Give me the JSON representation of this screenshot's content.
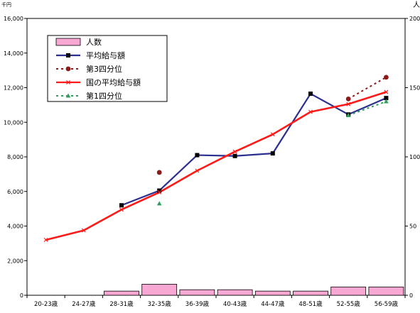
{
  "chart_data": {
    "type": "bar+line",
    "title": "",
    "y_left_unit": "千円",
    "y_right_unit": "人",
    "y_left_ticks": [
      "0",
      "2,000",
      "4,000",
      "6,000",
      "8,000",
      "10,000",
      "12,000",
      "14,000",
      "16,000"
    ],
    "y_right_ticks": [
      "0",
      "50",
      "100",
      "150",
      "200"
    ],
    "ylim_left": [
      0,
      16000
    ],
    "ylim_right": [
      0,
      200
    ],
    "grid": false,
    "legend_position": "top-left",
    "categories": [
      "20-23歳",
      "24-27歳",
      "28-31歳",
      "32-35歳",
      "36-39歳",
      "40-43歳",
      "44-47歳",
      "48-51歳",
      "52-55歳",
      "56-59歳"
    ],
    "series": [
      {
        "name": "人数",
        "kind": "bar",
        "axis": "right",
        "color": "#f9a8d4",
        "values": [
          0,
          0,
          3,
          8,
          4,
          4,
          3,
          3,
          6,
          6
        ]
      },
      {
        "name": "平均給与額",
        "kind": "line",
        "axis": "left",
        "color": "#2b2f8f",
        "marker": "square",
        "values": [
          null,
          null,
          5200,
          6050,
          8100,
          8050,
          8200,
          11650,
          10450,
          11400
        ]
      },
      {
        "name": "第3四分位",
        "kind": "dotted-line",
        "axis": "left",
        "color": "#8b1a1a",
        "marker": "circle",
        "values": [
          null,
          null,
          null,
          7100,
          null,
          null,
          null,
          null,
          11350,
          12600
        ]
      },
      {
        "name": "国の平均給与額",
        "kind": "line",
        "axis": "left",
        "color": "#ff1a1a",
        "marker": "x",
        "values": [
          3200,
          3750,
          4950,
          5950,
          7200,
          8300,
          9300,
          10600,
          11050,
          11750
        ]
      },
      {
        "name": "第1四分位",
        "kind": "dotted-line",
        "axis": "left",
        "color": "#2e9e5b",
        "marker": "triangle",
        "values": [
          null,
          null,
          null,
          5300,
          null,
          null,
          null,
          null,
          10400,
          11200
        ]
      }
    ]
  }
}
